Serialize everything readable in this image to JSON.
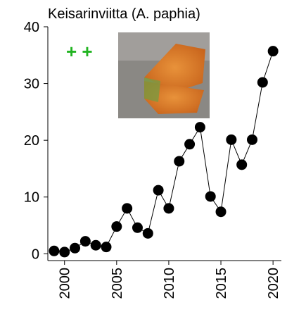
{
  "chart_data": {
    "type": "line",
    "title": "Keisarinviitta (A. paphia)",
    "annotation": "+ +",
    "x": [
      1999,
      2000,
      2001,
      2002,
      2003,
      2004,
      2005,
      2006,
      2007,
      2008,
      2009,
      2010,
      2011,
      2012,
      2013,
      2014,
      2015,
      2016,
      2017,
      2018,
      2019,
      2020
    ],
    "values": [
      0.5,
      0.3,
      1.0,
      2.2,
      1.5,
      1.2,
      4.8,
      8.0,
      4.6,
      3.6,
      11.2,
      8.0,
      16.3,
      19.3,
      22.3,
      10.1,
      7.4,
      20.1,
      15.7,
      20.1,
      30.2,
      35.7
    ],
    "color": "#000000",
    "xlim": [
      1998.4,
      2020.8
    ],
    "xticks": [
      2000,
      2005,
      2010,
      2015,
      2020
    ],
    "ylim": [
      -1.2,
      40
    ],
    "yticks": [
      0,
      10,
      20,
      30,
      40
    ]
  }
}
